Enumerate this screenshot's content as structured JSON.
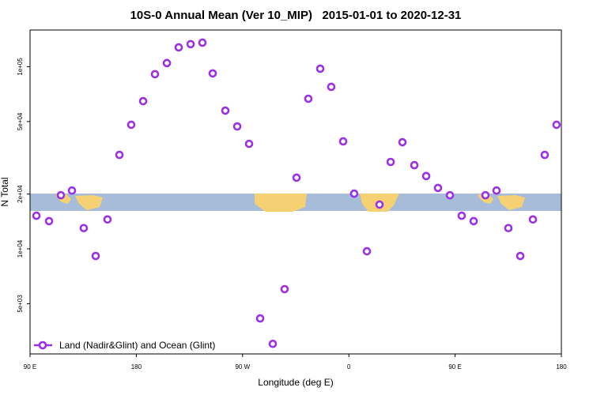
{
  "chart_data": {
    "type": "scatter",
    "title": "10S-0 Annual Mean (Ver 10_MIP)   2015-01-01 to 2020-12-31",
    "x_label": "Longitude (deg E)",
    "y_label": "N Total",
    "x": [
      95.4,
      106.1,
      116.1,
      125.5,
      135.5,
      145.6,
      155.6,
      165.7,
      175.7,
      185.8,
      195.8,
      205.9,
      215.9,
      226.0,
      236.0,
      244.7,
      255.4,
      265.5,
      275.5,
      284.9,
      295.6,
      305.6,
      315.7,
      325.7,
      335.8,
      345.1,
      355.2,
      364.5,
      375.3,
      386.0,
      395.4,
      405.4,
      415.5,
      425.5,
      435.5,
      445.6,
      455.6,
      465.7,
      475.7,
      485.1,
      495.1,
      505.2,
      515.9,
      525.9,
      535.9
    ],
    "series": [
      {
        "name": "Land (Nadir&Glint) and Ocean (Glint)",
        "color": "#9b30e6",
        "values": [
          15200,
          14200,
          19700,
          20900,
          13000,
          9140,
          14500,
          32800,
          48000,
          64700,
          91000,
          104700,
          127700,
          133000,
          135600,
          91900,
          57400,
          47000,
          37700,
          4150,
          3010,
          6010,
          24600,
          66700,
          97500,
          77500,
          38900,
          20100,
          9700,
          17500,
          30000,
          38500,
          28800,
          25100,
          21600,
          19700,
          15200,
          14200,
          19700,
          20900,
          13000,
          9140,
          14500,
          32800,
          48000
        ]
      }
    ],
    "xlim": [
      90,
      540
    ],
    "xticks": [
      {
        "value": 90,
        "label": "90 E"
      },
      180,
      {
        "value": 270,
        "label": "90 W"
      },
      {
        "value": 360,
        "label": "0"
      },
      {
        "value": 450,
        "label": "90 E"
      },
      {
        "value": 540,
        "label": "180"
      }
    ],
    "ylim": [
      2650,
      159000
    ],
    "yticks": [
      {
        "value": 5000,
        "label": "5e+03"
      },
      {
        "value": 10000,
        "label": "1e+04"
      },
      {
        "value": 20000,
        "label": "2e+04"
      },
      {
        "value": 50000,
        "label": "5e+04"
      },
      {
        "value": 100000,
        "label": "1e+05"
      }
    ],
    "log_y": true,
    "legend": "bottom-left"
  }
}
